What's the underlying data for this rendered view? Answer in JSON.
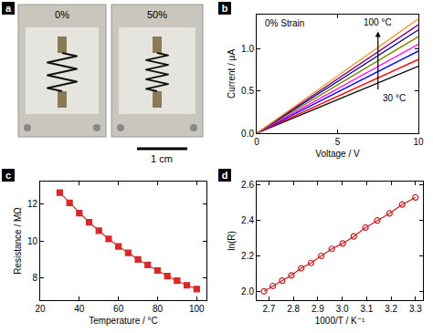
{
  "photo": {
    "label": "a",
    "captions": [
      "0%",
      "50%"
    ],
    "scale_bar": "1 cm"
  },
  "chart_data": [
    {
      "label": "b",
      "type": "line",
      "x": [
        0,
        10
      ],
      "series": [
        {
          "color": "#000000",
          "values": [
            0,
            0.79
          ]
        },
        {
          "color": "#ff0000",
          "values": [
            0,
            0.87
          ]
        },
        {
          "color": "#0000ff",
          "values": [
            0,
            0.97
          ]
        },
        {
          "color": "#ff00ff",
          "values": [
            0,
            1.05
          ]
        },
        {
          "color": "#808000",
          "values": [
            0,
            1.14
          ]
        },
        {
          "color": "#000080",
          "values": [
            0,
            1.22
          ]
        },
        {
          "color": "#800080",
          "values": [
            0,
            1.28
          ]
        },
        {
          "color": "#f0a030",
          "values": [
            0,
            1.35
          ]
        }
      ],
      "xlabel": "Voltage / V",
      "ylabel": "Current / µA",
      "xlim": [
        0,
        10
      ],
      "xticks": [
        0,
        5,
        10
      ],
      "ylim": [
        0,
        1.4
      ],
      "yticks": [
        {
          "value": 0,
          "label": "0.0"
        },
        {
          "value": 0.5,
          "label": "0.5"
        },
        {
          "value": 1,
          "label": "1.0"
        }
      ],
      "annotations": [
        "0% Strain",
        "100 °C",
        "30 °C"
      ],
      "grid": false
    },
    {
      "label": "c",
      "type": "line",
      "marker": "square",
      "color": "#d42a2a",
      "x": [
        30,
        35,
        40,
        45,
        50,
        55,
        60,
        65,
        70,
        75,
        80,
        85,
        90,
        95,
        100
      ],
      "values": [
        12.6,
        12.05,
        11.5,
        11.0,
        10.55,
        10.1,
        9.7,
        9.35,
        9.0,
        8.7,
        8.4,
        8.1,
        7.85,
        7.6,
        7.4
      ],
      "xlabel": "Temperature / °C",
      "ylabel": "Resistance / MΩ",
      "xlim": [
        20,
        105
      ],
      "xticks": [
        20,
        40,
        60,
        80,
        100
      ],
      "ylim": [
        6.8,
        13.2
      ],
      "yticks": [
        8,
        10,
        12
      ],
      "grid": false
    },
    {
      "label": "d",
      "type": "line",
      "marker": "circle-open",
      "color": "#c02020",
      "x": [
        2.68,
        2.716,
        2.754,
        2.792,
        2.832,
        2.872,
        2.914,
        2.957,
        3.002,
        3.047,
        3.095,
        3.143,
        3.193,
        3.245,
        3.299
      ],
      "values": [
        2.0,
        2.03,
        2.06,
        2.09,
        2.13,
        2.16,
        2.2,
        2.24,
        2.27,
        2.31,
        2.36,
        2.4,
        2.44,
        2.49,
        2.53
      ],
      "xlabel": "1000/T / K⁻¹",
      "ylabel": "ln(R)",
      "xlim": [
        2.65,
        3.33
      ],
      "xticks": [
        2.7,
        2.8,
        2.9,
        {
          "value": 3,
          "label": "3.0"
        },
        3.1,
        3.2,
        3.3
      ],
      "ylim": [
        1.95,
        2.62
      ],
      "yticks": [
        {
          "value": 2,
          "label": "2.0"
        },
        2.2,
        2.4,
        2.6
      ],
      "grid": false
    }
  ]
}
